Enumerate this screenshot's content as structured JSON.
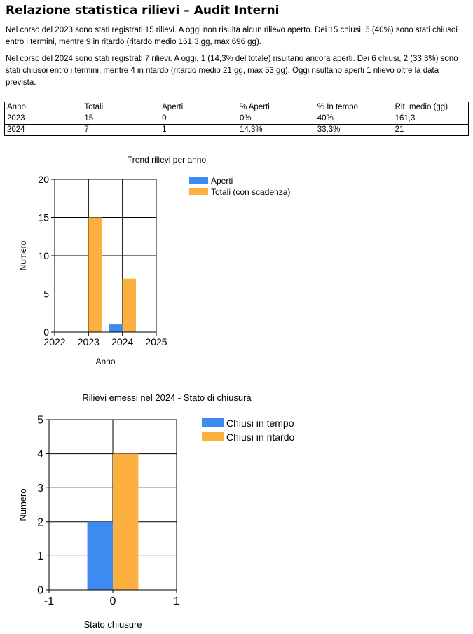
{
  "report": {
    "title": "Relazione statistica rilievi – Audit Interni",
    "paragraph_2023": "Nel corso del 2023 sono stati registrati 15 rilievi. A oggi non risulta alcun rilievo aperto. Dei 15 chiusi, 6 (40%) sono stati chiusoi entro i termini, mentre 9 in ritardo (ritardo medio 161,3 gg, max 696 gg).",
    "paragraph_2024": "Nel corso del 2024 sono stati registrati 7 rilievi. A oggi, 1 (14,3% del totale) risultano ancora aperti. Dei 6 chiusi, 2 (33,3%) sono stati chiusoi entro i termini, mentre 4 in ritardo (ritardo medio 21 gg, max 53 gg). Oggi risultano aperti 1 rilievo oltre la data prevista."
  },
  "table": {
    "headers": [
      "Anno",
      "Totali",
      "Aperti",
      "% Aperti",
      "% In tempo",
      "Rit. medio (gg)"
    ],
    "rows": [
      [
        "2023",
        "15",
        "0",
        "0%",
        "40%",
        "161,3"
      ],
      [
        "2024",
        "7",
        "1",
        "14,3%",
        "33,3%",
        "21"
      ]
    ]
  },
  "chart_data": [
    {
      "type": "bar",
      "title": "Trend rilievi per anno",
      "xlabel": "Anno",
      "ylabel": "Numero",
      "xlim": [
        2022,
        2025
      ],
      "ylim": [
        0,
        20
      ],
      "xticks": [
        "2022",
        "2023",
        "2024",
        "2025"
      ],
      "yticks": [
        "0",
        "5",
        "10",
        "15",
        "20"
      ],
      "categories": [
        2023,
        2024
      ],
      "series": [
        {
          "name": "Aperti",
          "color": "#3d8af0",
          "values": [
            0,
            1
          ]
        },
        {
          "name": "Totali (con scadenza)",
          "color": "#fbb040",
          "values": [
            15,
            7
          ]
        }
      ]
    },
    {
      "type": "bar",
      "title": "Rilievi emessi nel 2024 - Stato di chiusura",
      "xlabel": "Stato chiusure",
      "ylabel": "Numero",
      "xlim": [
        -1,
        1
      ],
      "ylim": [
        0,
        5
      ],
      "xticks": [
        "-1",
        "0",
        "1"
      ],
      "yticks": [
        "0",
        "1",
        "2",
        "3",
        "4",
        "5"
      ],
      "categories": [
        0
      ],
      "series": [
        {
          "name": "Chiusi in tempo",
          "color": "#3d8af0",
          "values": [
            2
          ]
        },
        {
          "name": "Chiusi in ritardo",
          "color": "#fbb040",
          "values": [
            4
          ]
        }
      ]
    }
  ]
}
